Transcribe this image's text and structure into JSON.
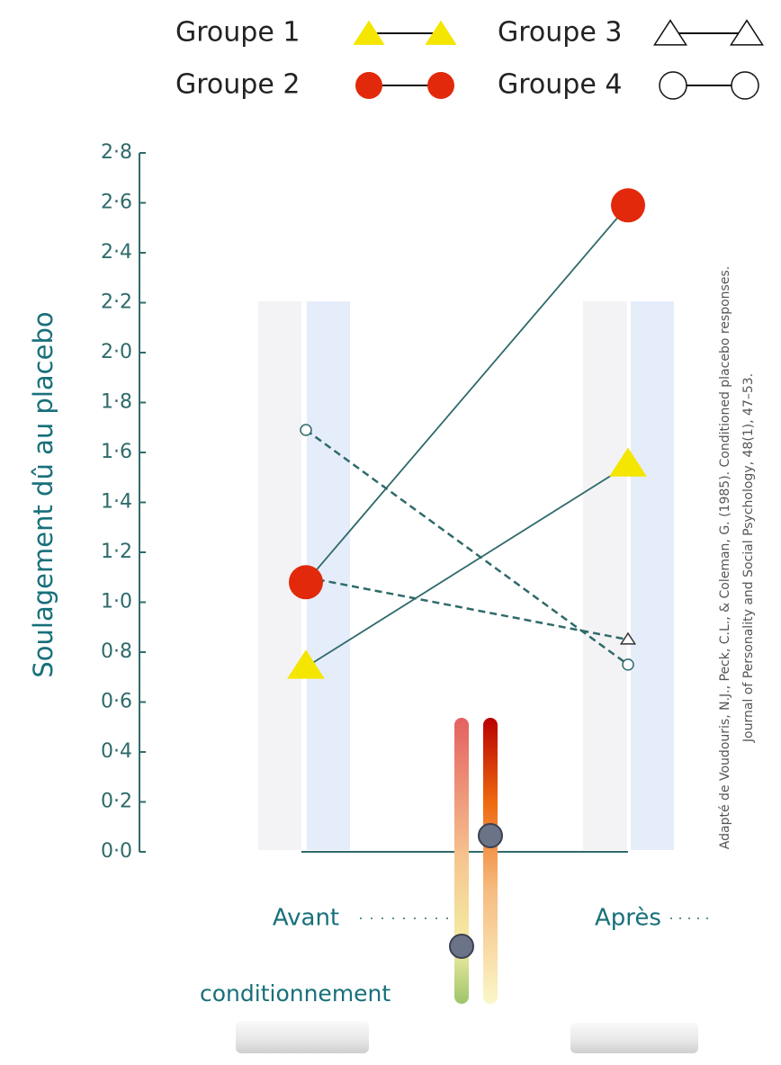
{
  "chart_data": {
    "type": "line",
    "y_label": "Soulagement dû au placebo",
    "categories": [
      "Avant",
      "Après"
    ],
    "annotation": "conditionnement",
    "source": [
      "Adapté de Voudouris, N.J., Peck, C.L., & Coleman, G. (1985). Conditioned placebo responses.",
      "Journal of Personality and Social Psychology, 48(1), 47–53."
    ],
    "ylim": [
      0,
      2.8
    ],
    "yticks": [
      {
        "value": 0,
        "label": "0·0"
      },
      {
        "value": 0.2,
        "label": "0·2"
      },
      {
        "value": 0.4,
        "label": "0·4"
      },
      {
        "value": 0.6,
        "label": "0·6"
      },
      {
        "value": 0.8,
        "label": "0·8"
      },
      {
        "value": 1.0,
        "label": "1·0"
      },
      {
        "value": 1.2,
        "label": "1·2"
      },
      {
        "value": 1.4,
        "label": "1·4"
      },
      {
        "value": 1.6,
        "label": "1·6"
      },
      {
        "value": 1.8,
        "label": "1·8"
      },
      {
        "value": 2.0,
        "label": "2·0"
      },
      {
        "value": 2.2,
        "label": "2·2"
      },
      {
        "value": 2.4,
        "label": "2·4"
      },
      {
        "value": 2.6,
        "label": "2·6"
      },
      {
        "value": 2.8,
        "label": "2·8"
      }
    ],
    "line_color": "#2f6a6a",
    "series": [
      {
        "name": "Groupe 1",
        "color": "#f4e600",
        "marker": "triangle",
        "marker_size": 19,
        "dashed": false,
        "values": [
          0.74,
          1.55
        ]
      },
      {
        "name": "Groupe 2",
        "color": "#e2290b",
        "marker": "circle",
        "marker_size": 19,
        "dashed": false,
        "values": [
          1.08,
          2.59
        ]
      },
      {
        "name": "Groupe 3",
        "color": "#ffffff",
        "marker": "triangle",
        "marker_size": 7,
        "dashed": true,
        "values": [
          1.1,
          0.85
        ]
      },
      {
        "name": "Groupe 4",
        "color": "#ffffff",
        "marker": "circle",
        "marker_size": 6,
        "dashed": true,
        "values": [
          1.69,
          0.75
        ]
      }
    ]
  }
}
